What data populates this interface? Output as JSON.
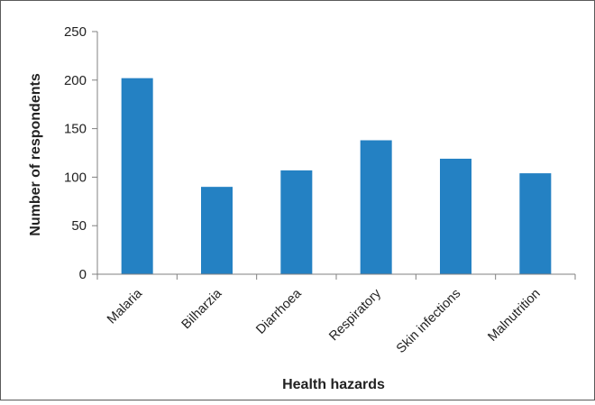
{
  "chart_data": {
    "type": "bar",
    "categories": [
      "Malaria",
      "Bilharzia",
      "Diarrhoea",
      "Respiratory",
      "Skin infections",
      "Malnutrition"
    ],
    "values": [
      202,
      90,
      107,
      138,
      119,
      104
    ],
    "xlabel": "Health hazards",
    "ylabel": "Number of respondents",
    "ylim": [
      0,
      250
    ],
    "yticks": [
      0,
      50,
      100,
      150,
      200,
      250
    ],
    "grid": false,
    "legend": "none",
    "bar_color": "#2481c3",
    "frame_color": "#5a5a5a"
  }
}
